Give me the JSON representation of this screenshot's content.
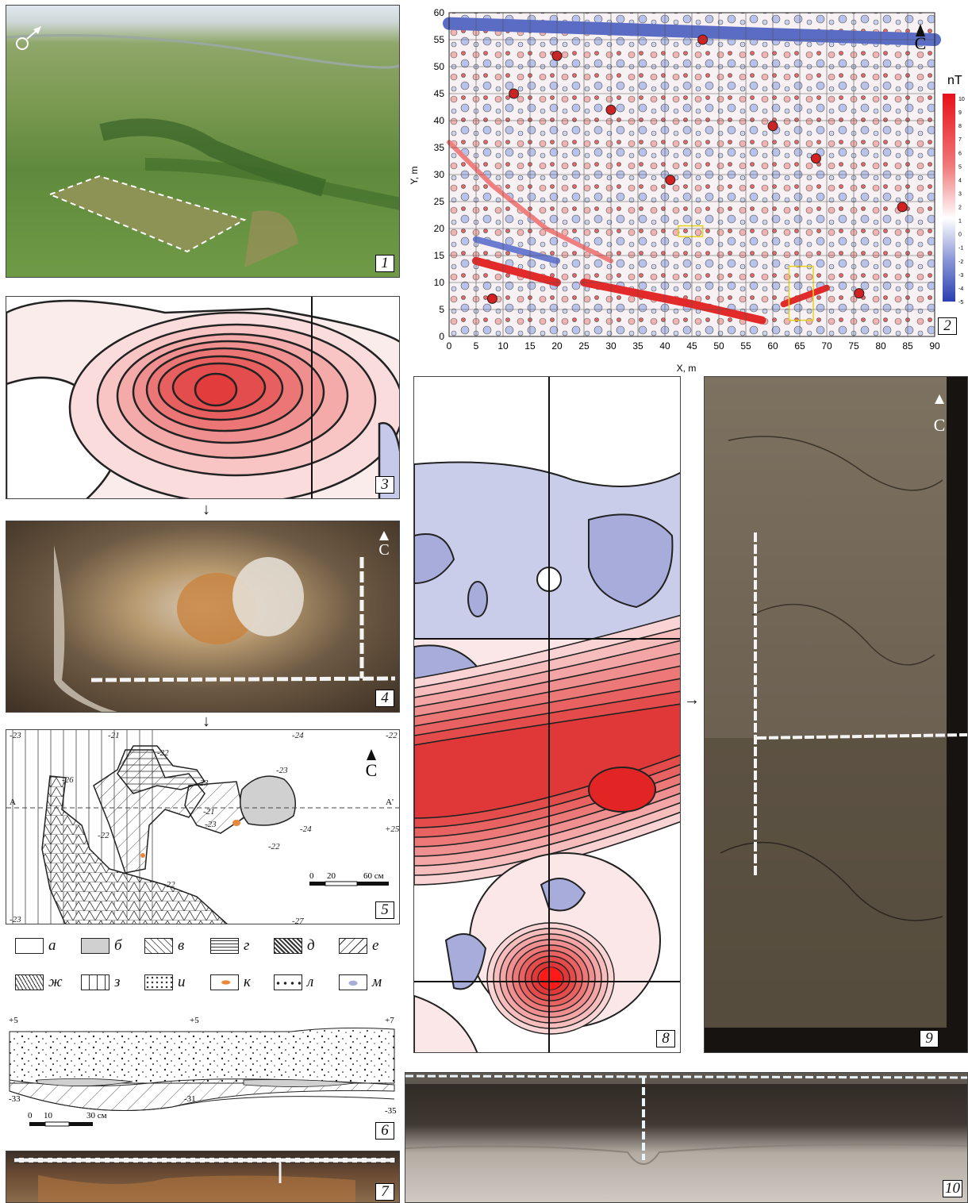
{
  "panels": {
    "p1": "1",
    "p2": "2",
    "p3": "3",
    "p4": "4",
    "p5": "5",
    "p6": "6",
    "p7": "7",
    "p8": "8",
    "p9": "9",
    "p10": "10"
  },
  "north_symbol": "С",
  "chart_data": {
    "type": "heatmap",
    "xlabel": "X, m",
    "ylabel": "Y, m",
    "xlim": [
      0,
      90
    ],
    "ylim": [
      0,
      60
    ],
    "x_ticks": [
      "0",
      "5",
      "10",
      "15",
      "20",
      "25",
      "30",
      "35",
      "40",
      "45",
      "50",
      "55",
      "60",
      "65",
      "70",
      "75",
      "80",
      "85",
      "90"
    ],
    "y_ticks": [
      "0",
      "5",
      "10",
      "15",
      "20",
      "25",
      "30",
      "35",
      "40",
      "45",
      "50",
      "55",
      "60"
    ],
    "colorbar_unit": "nT",
    "colorbar_ticks": [
      "10",
      "9",
      "8",
      "7",
      "6",
      "5",
      "4",
      "3",
      "2",
      "1",
      "0",
      "-1",
      "-2",
      "-3",
      "-4",
      "-5"
    ],
    "grid": true
  },
  "plan5": {
    "contours": [
      "-23",
      "-21",
      "-24",
      "-22",
      "-22",
      "-26",
      "-23",
      "-23",
      "-23",
      "-21",
      "-22",
      "-22",
      "-22",
      "-23",
      "-27",
      "-24",
      "+25"
    ],
    "section_A": "A",
    "section_A2": "A'",
    "scale": [
      "0",
      "20",
      "60 см"
    ]
  },
  "legend": [
    {
      "key": "а"
    },
    {
      "key": "б"
    },
    {
      "key": "в"
    },
    {
      "key": "г"
    },
    {
      "key": "д"
    },
    {
      "key": "е"
    },
    {
      "key": "ж"
    },
    {
      "key": "з"
    },
    {
      "key": "и"
    },
    {
      "key": "к"
    },
    {
      "key": "л"
    },
    {
      "key": "м"
    }
  ],
  "section6": {
    "top": [
      "+5",
      "+5",
      "+7"
    ],
    "bottom": [
      "-33",
      "-31",
      "-35"
    ],
    "scale": [
      "0",
      "10",
      "30 см"
    ]
  }
}
